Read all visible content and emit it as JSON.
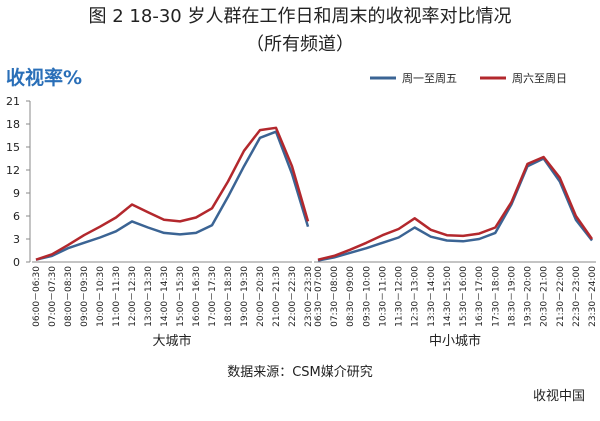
{
  "title": "图 2 18-30 岁人群在工作日和周末的收视率对比情况",
  "subtitle": "（所有频道）",
  "ylabel": "收视率%",
  "source": "数据来源：CSM媒介研究",
  "watermark": "收视中国",
  "chart_data": [
    {
      "type": "line",
      "xlabel": "大城市",
      "categories": [
        "06:00－06:30",
        "07:00－07:30",
        "08:00－08:30",
        "09:00－09:30",
        "10:00－10:30",
        "11:00－11:30",
        "12:00－12:30",
        "13:00－13:30",
        "14:00－14:30",
        "15:00－15:30",
        "16:00－16:30",
        "17:00－17:30",
        "18:00－18:30",
        "19:00－19:30",
        "20:00－20:30",
        "21:00－21:30",
        "22:00－22:30",
        "23:00－23:30"
      ],
      "series": [
        {
          "name": "周一至周五",
          "color": "#3b6494",
          "values": [
            0.3,
            0.8,
            1.8,
            2.5,
            3.2,
            4.0,
            5.3,
            4.5,
            3.8,
            3.6,
            3.8,
            4.8,
            8.5,
            12.5,
            16.2,
            17.0,
            11.5,
            4.6
          ]
        },
        {
          "name": "周六至周日",
          "color": "#b3282d",
          "values": [
            0.3,
            1.0,
            2.2,
            3.5,
            4.6,
            5.8,
            7.5,
            6.5,
            5.5,
            5.3,
            5.8,
            7.0,
            10.5,
            14.5,
            17.2,
            17.5,
            12.5,
            5.3
          ]
        }
      ],
      "ylim": [
        0,
        21
      ],
      "yticks": [
        0,
        3,
        6,
        9,
        12,
        15,
        18,
        21
      ]
    },
    {
      "type": "line",
      "xlabel": "中小城市",
      "categories": [
        "06:30－07:00",
        "07:30－08:00",
        "08:30－09:00",
        "09:30－10:00",
        "10:30－11:00",
        "11:30－12:00",
        "12:30－13:00",
        "13:30－14:00",
        "14:30－15:00",
        "15:30－16:00",
        "16:30－17:00",
        "17:30－18:00",
        "18:30－19:00",
        "19:30－20:00",
        "20:30－21:00",
        "21:30－22:00",
        "22:30－23:00",
        "23:30－24:00"
      ],
      "series": [
        {
          "name": "周一至周五",
          "color": "#3b6494",
          "values": [
            0.2,
            0.6,
            1.2,
            1.8,
            2.5,
            3.2,
            4.5,
            3.3,
            2.8,
            2.7,
            3.0,
            3.8,
            7.5,
            12.5,
            13.5,
            10.5,
            5.5,
            2.8
          ]
        },
        {
          "name": "周六至周日",
          "color": "#b3282d",
          "values": [
            0.3,
            0.8,
            1.6,
            2.5,
            3.5,
            4.3,
            5.7,
            4.2,
            3.5,
            3.4,
            3.7,
            4.5,
            7.8,
            12.8,
            13.7,
            11.0,
            6.0,
            3.0
          ]
        }
      ],
      "ylim": [
        0,
        21
      ],
      "yticks": [
        0,
        3,
        6,
        9,
        12,
        15,
        18,
        21
      ]
    }
  ]
}
